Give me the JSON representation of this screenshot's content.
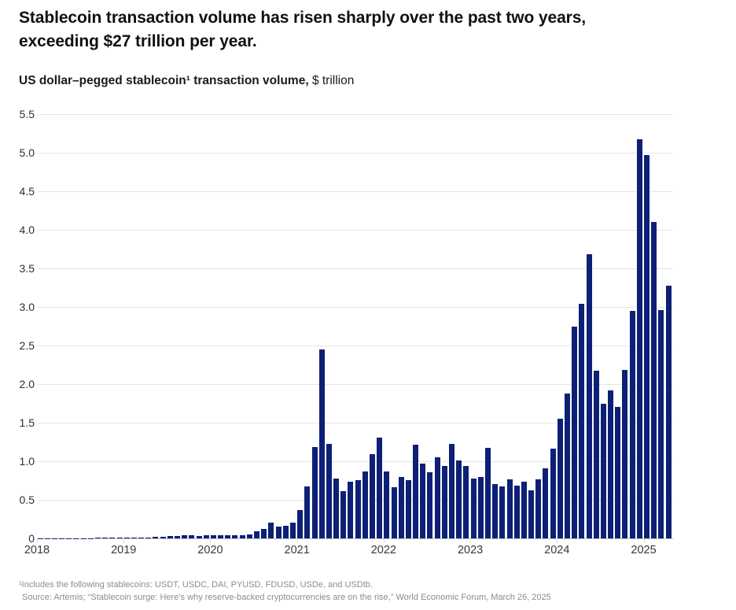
{
  "page": {
    "title_line1": "Stablecoin transaction volume has risen sharply over the past two years,",
    "title_line2": "exceeding $27 trillion per year.",
    "subtitle_bold": "US dollar–pegged stablecoin¹ transaction volume,",
    "subtitle_regular": " $ trillion",
    "footnote1": "¹Includes the following stablecoins: USDT, USDC, DAI, PYUSD, FDUSD, USDe, and USDtb.",
    "footnote2": "Source: Artemis; “Stablecoin surge: Here’s why reserve-backed cryptocurrencies are on the rise,” World Economic Forum, March 26, 2025"
  },
  "chart_data": {
    "type": "bar",
    "title": "US dollar–pegged stablecoin transaction volume",
    "unit": "$ trillion",
    "frequency": "monthly",
    "x_start": "2018-01",
    "x_end": "2025-04",
    "x_tick_labels": [
      "2018",
      "2019",
      "2020",
      "2021",
      "2022",
      "2023",
      "2024",
      "2025"
    ],
    "y_tick_labels_top_to_bottom": [
      "5.5",
      "5.0",
      "4.5",
      "4.0",
      "3.5",
      "3.0",
      "2.5",
      "2.0",
      "1.5",
      "1.0",
      "0.5",
      "0"
    ],
    "ylim": [
      0,
      5.5
    ],
    "y_step": 0.5,
    "grid": true,
    "legend": "none",
    "bar_color": "#0d2076",
    "series": [
      {
        "name": "US dollar–pegged stablecoin transaction volume, $ trillion",
        "values": [
          0.003,
          0.003,
          0.003,
          0.004,
          0.004,
          0.004,
          0.005,
          0.005,
          0.006,
          0.006,
          0.008,
          0.008,
          0.008,
          0.009,
          0.01,
          0.014,
          0.017,
          0.02,
          0.028,
          0.03,
          0.038,
          0.04,
          0.034,
          0.04,
          0.04,
          0.045,
          0.04,
          0.045,
          0.04,
          0.05,
          0.09,
          0.12,
          0.2,
          0.15,
          0.16,
          0.2,
          0.37,
          0.67,
          1.18,
          2.45,
          1.22,
          0.78,
          0.61,
          0.73,
          0.76,
          0.87,
          1.09,
          1.31,
          0.87,
          0.66,
          0.8,
          0.76,
          1.21,
          0.97,
          0.86,
          1.05,
          0.94,
          1.22,
          1.01,
          0.94,
          0.78,
          0.8,
          1.17,
          0.7,
          0.67,
          0.77,
          0.68,
          0.73,
          0.62,
          0.77,
          0.91,
          1.16,
          1.55,
          1.88,
          2.75,
          3.04,
          3.68,
          2.17,
          1.74,
          1.92,
          1.7,
          2.18,
          2.95,
          5.17,
          4.97,
          4.1,
          2.96,
          3.28
        ]
      }
    ]
  }
}
